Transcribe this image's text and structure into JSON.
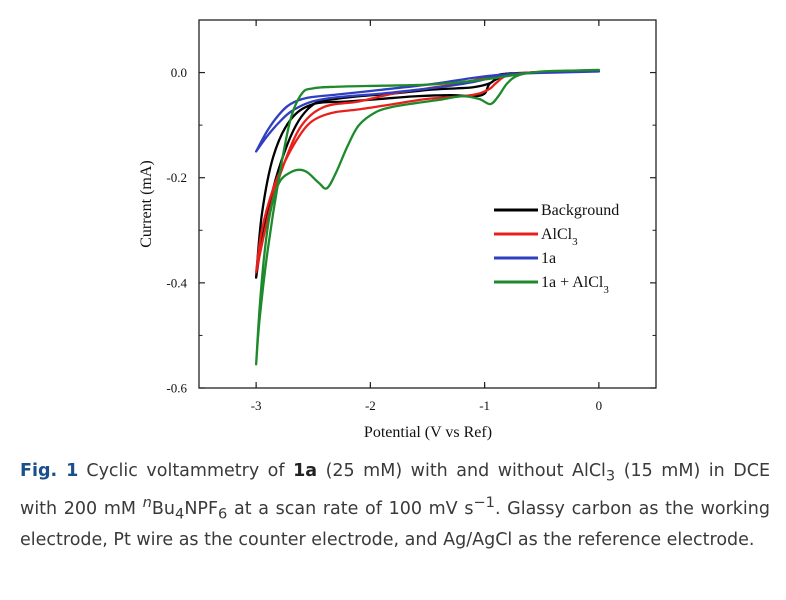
{
  "chart_data": {
    "type": "line",
    "xlabel": "Potential (V vs Ref)",
    "ylabel": "Current (mA)",
    "xlim": [
      -3.5,
      0.5
    ],
    "ylim": [
      -0.6,
      0.1
    ],
    "x_ticks": [
      "-3",
      "-2",
      "-1",
      "0"
    ],
    "y_ticks": [
      "0.0",
      "-0.2",
      "-0.4",
      "-0.6"
    ],
    "legend_position": "right",
    "series": [
      {
        "name": "Background",
        "legend_label": "Background",
        "color": "#000000",
        "points": [
          [
            -3.0,
            -0.39
          ],
          [
            -2.95,
            -0.32
          ],
          [
            -2.85,
            -0.22
          ],
          [
            -2.75,
            -0.15
          ],
          [
            -2.65,
            -0.1
          ],
          [
            -2.55,
            -0.07
          ],
          [
            -2.45,
            -0.055
          ],
          [
            -2.3,
            -0.05
          ],
          [
            -2.1,
            -0.045
          ],
          [
            -1.8,
            -0.04
          ],
          [
            -1.5,
            -0.033
          ],
          [
            -1.25,
            -0.03
          ],
          [
            -1.1,
            -0.028
          ],
          [
            -0.95,
            -0.02
          ],
          [
            -0.9,
            -0.01
          ],
          [
            -0.85,
            -0.003
          ],
          [
            -0.6,
            0.0
          ],
          [
            -0.3,
            0.002
          ],
          [
            0.0,
            0.003
          ],
          [
            -0.3,
            0.002
          ],
          [
            -0.6,
            0.0
          ],
          [
            -0.8,
            -0.005
          ],
          [
            -0.95,
            -0.02
          ],
          [
            -1.0,
            -0.04
          ],
          [
            -1.1,
            -0.045
          ],
          [
            -1.3,
            -0.043
          ],
          [
            -1.6,
            -0.045
          ],
          [
            -1.9,
            -0.05
          ],
          [
            -2.2,
            -0.055
          ],
          [
            -2.5,
            -0.06
          ],
          [
            -2.7,
            -0.09
          ],
          [
            -2.85,
            -0.16
          ],
          [
            -2.95,
            -0.27
          ],
          [
            -3.0,
            -0.39
          ]
        ]
      },
      {
        "name": "AlCl3",
        "legend_label": "AlCl",
        "legend_subscript": "3",
        "color": "#e8201c",
        "points": [
          [
            -3.0,
            -0.38
          ],
          [
            -2.95,
            -0.3
          ],
          [
            -2.85,
            -0.22
          ],
          [
            -2.75,
            -0.17
          ],
          [
            -2.65,
            -0.13
          ],
          [
            -2.55,
            -0.1
          ],
          [
            -2.45,
            -0.085
          ],
          [
            -2.3,
            -0.075
          ],
          [
            -2.1,
            -0.07
          ],
          [
            -1.8,
            -0.06
          ],
          [
            -1.5,
            -0.05
          ],
          [
            -1.2,
            -0.045
          ],
          [
            -1.05,
            -0.04
          ],
          [
            -0.95,
            -0.03
          ],
          [
            -0.9,
            -0.02
          ],
          [
            -0.8,
            -0.005
          ],
          [
            -0.6,
            0.0
          ],
          [
            -0.3,
            0.002
          ],
          [
            0.0,
            0.003
          ],
          [
            -0.3,
            0.002
          ],
          [
            -0.6,
            0.0
          ],
          [
            -0.85,
            -0.005
          ],
          [
            -1.0,
            -0.01
          ],
          [
            -1.2,
            -0.02
          ],
          [
            -1.5,
            -0.03
          ],
          [
            -1.8,
            -0.04
          ],
          [
            -2.1,
            -0.055
          ],
          [
            -2.4,
            -0.065
          ],
          [
            -2.6,
            -0.1
          ],
          [
            -2.75,
            -0.17
          ],
          [
            -2.88,
            -0.26
          ],
          [
            -3.0,
            -0.38
          ]
        ]
      },
      {
        "name": "1a",
        "legend_label": "1a",
        "color": "#2f3fc0",
        "points": [
          [
            -3.0,
            -0.15
          ],
          [
            -2.9,
            -0.12
          ],
          [
            -2.8,
            -0.095
          ],
          [
            -2.7,
            -0.075
          ],
          [
            -2.55,
            -0.058
          ],
          [
            -2.4,
            -0.05
          ],
          [
            -2.2,
            -0.045
          ],
          [
            -1.9,
            -0.04
          ],
          [
            -1.6,
            -0.033
          ],
          [
            -1.3,
            -0.025
          ],
          [
            -1.1,
            -0.018
          ],
          [
            -0.9,
            -0.008
          ],
          [
            -0.7,
            -0.002
          ],
          [
            -0.4,
            0.0
          ],
          [
            0.0,
            0.002
          ],
          [
            -0.4,
            0.0
          ],
          [
            -0.7,
            -0.002
          ],
          [
            -0.9,
            -0.005
          ],
          [
            -1.1,
            -0.01
          ],
          [
            -1.4,
            -0.02
          ],
          [
            -1.7,
            -0.028
          ],
          [
            -2.0,
            -0.035
          ],
          [
            -2.3,
            -0.042
          ],
          [
            -2.55,
            -0.048
          ],
          [
            -2.7,
            -0.06
          ],
          [
            -2.8,
            -0.08
          ],
          [
            -2.9,
            -0.11
          ],
          [
            -3.0,
            -0.15
          ]
        ]
      },
      {
        "name": "1a + AlCl3",
        "legend_label": "1a + AlCl",
        "legend_subscript": "3",
        "color": "#1e8a2c",
        "points": [
          [
            -3.0,
            -0.555
          ],
          [
            -2.97,
            -0.45
          ],
          [
            -2.93,
            -0.35
          ],
          [
            -2.88,
            -0.27
          ],
          [
            -2.8,
            -0.21
          ],
          [
            -2.7,
            -0.19
          ],
          [
            -2.62,
            -0.185
          ],
          [
            -2.55,
            -0.19
          ],
          [
            -2.45,
            -0.21
          ],
          [
            -2.38,
            -0.22
          ],
          [
            -2.3,
            -0.19
          ],
          [
            -2.2,
            -0.14
          ],
          [
            -2.1,
            -0.1
          ],
          [
            -1.95,
            -0.075
          ],
          [
            -1.8,
            -0.065
          ],
          [
            -1.6,
            -0.058
          ],
          [
            -1.4,
            -0.052
          ],
          [
            -1.2,
            -0.045
          ],
          [
            -1.05,
            -0.05
          ],
          [
            -0.95,
            -0.06
          ],
          [
            -0.88,
            -0.045
          ],
          [
            -0.8,
            -0.02
          ],
          [
            -0.7,
            -0.005
          ],
          [
            -0.5,
            0.002
          ],
          [
            -0.2,
            0.004
          ],
          [
            0.0,
            0.005
          ],
          [
            -0.2,
            0.004
          ],
          [
            -0.5,
            0.002
          ],
          [
            -0.75,
            -0.005
          ],
          [
            -0.9,
            -0.01
          ],
          [
            -1.2,
            -0.018
          ],
          [
            -1.5,
            -0.023
          ],
          [
            -1.9,
            -0.025
          ],
          [
            -2.3,
            -0.027
          ],
          [
            -2.5,
            -0.03
          ],
          [
            -2.6,
            -0.04
          ],
          [
            -2.7,
            -0.09
          ],
          [
            -2.8,
            -0.2
          ],
          [
            -2.9,
            -0.34
          ],
          [
            -2.97,
            -0.47
          ],
          [
            -3.0,
            -0.555
          ]
        ]
      }
    ]
  },
  "caption": {
    "label": "Fig. 1",
    "text_1": "Cyclic voltammetry of ",
    "compound": "1a",
    "text_2": " (25 mM) with and without AlCl",
    "sub_1": "3",
    "text_3": " (15 mM) in DCE with 200 mM ",
    "sup_n": "n",
    "text_4": "Bu",
    "sub_2": "4",
    "text_5": "NPF",
    "sub_3": "6",
    "text_6": " at a scan rate of 100 mV s",
    "sup_unit": "−1",
    "text_7": ". Glassy carbon as the working electrode, Pt wire as the counter electrode, and Ag/AgCl as the reference electrode."
  }
}
